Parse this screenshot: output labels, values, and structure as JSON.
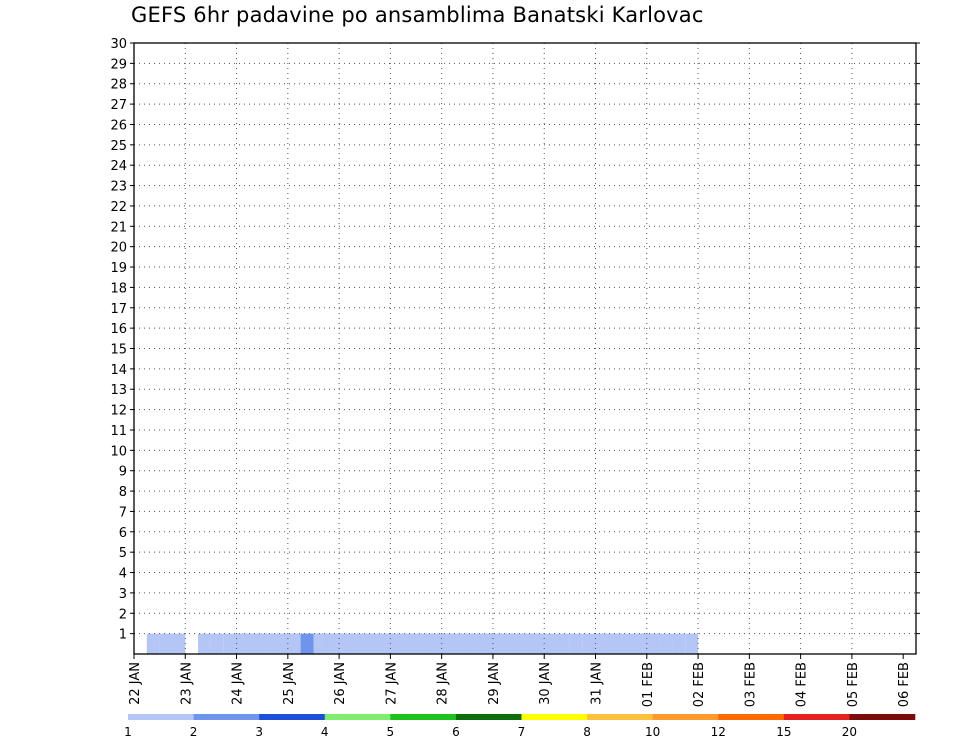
{
  "chart_data": {
    "type": "heatmap",
    "title": "GEFS 6hr padavine po ansamblima Banatski Karlovac",
    "y_ticks": [
      1,
      2,
      3,
      4,
      5,
      6,
      7,
      8,
      9,
      10,
      11,
      12,
      13,
      14,
      15,
      16,
      17,
      18,
      19,
      20,
      21,
      22,
      23,
      24,
      25,
      26,
      27,
      28,
      29,
      30
    ],
    "x_ticks": [
      "22 JAN",
      "23 JAN",
      "24 JAN",
      "25 JAN",
      "26 JAN",
      "27 JAN",
      "28 JAN",
      "29 JAN",
      "30 JAN",
      "31 JAN",
      "01 FEB",
      "02 FEB",
      "03 FEB",
      "04 FEB",
      "05 FEB",
      "06 FEB"
    ],
    "x_range": [
      0,
      61
    ],
    "y_range": [
      0,
      30
    ],
    "grid": true,
    "legend_position": "bottom",
    "legend": {
      "bounds": [
        1,
        2,
        3,
        4,
        5,
        6,
        7,
        8,
        10,
        12,
        15,
        20
      ],
      "colors": [
        "#b3c6f5",
        "#6f94ec",
        "#1e4fd8",
        "#7fec6e",
        "#1ec21e",
        "#0e6e0e",
        "#ffff00",
        "#ffc03c",
        "#ff9a2c",
        "#ff6a00",
        "#e62020",
        "#7a0c0c"
      ]
    },
    "cells": [
      [
        1,
        1,
        1
      ],
      [
        9,
        1,
        1
      ],
      [
        10,
        1,
        1
      ],
      [
        11,
        1,
        1
      ],
      [
        8,
        1,
        3
      ],
      [
        9,
        1,
        1
      ],
      [
        2,
        1,
        1
      ],
      [
        3,
        1,
        1
      ],
      [
        8,
        1,
        4
      ],
      [
        9,
        1,
        2
      ],
      [
        5,
        1,
        1
      ],
      [
        6,
        1,
        1
      ],
      [
        20,
        1,
        1
      ],
      [
        7,
        1,
        1
      ],
      [
        8,
        1,
        1
      ],
      [
        20,
        1,
        1
      ],
      [
        29,
        1,
        1
      ],
      [
        30,
        1,
        1
      ],
      [
        31,
        1,
        1
      ],
      [
        36,
        1,
        1
      ],
      [
        37,
        1,
        1
      ],
      [
        39,
        1,
        2
      ],
      [
        40,
        1,
        2
      ],
      [
        8,
        1,
        1
      ],
      [
        9,
        1,
        1
      ],
      [
        10,
        1,
        1
      ],
      [
        11,
        1,
        1
      ],
      [
        9,
        1,
        1
      ],
      [
        11,
        1,
        1
      ],
      [
        10,
        1,
        1
      ],
      [
        11,
        1,
        1
      ],
      [
        12,
        1,
        1
      ],
      [
        29,
        1,
        1
      ],
      [
        30,
        1,
        1
      ],
      [
        31,
        1,
        1
      ],
      [
        36,
        1,
        1
      ],
      [
        37,
        1,
        1
      ],
      [
        40,
        1,
        1
      ],
      [
        41,
        1,
        1
      ],
      [
        42,
        1,
        1
      ],
      [
        43,
        1,
        1
      ],
      [
        11,
        1,
        1
      ],
      [
        12,
        1,
        1
      ],
      [
        12,
        1,
        1
      ],
      [
        13,
        1,
        1
      ],
      [
        14,
        1,
        1
      ],
      [
        15,
        1,
        1
      ],
      [
        16,
        1,
        1
      ],
      [
        13,
        1,
        2
      ],
      [
        14,
        1,
        2
      ],
      [
        19,
        1,
        1
      ],
      [
        20,
        1,
        1
      ],
      [
        21,
        1,
        1
      ],
      [
        22,
        1,
        1
      ],
      [
        23,
        1,
        1
      ],
      [
        24,
        1,
        1
      ],
      [
        25,
        1,
        1
      ],
      [
        26,
        1,
        1
      ],
      [
        27,
        1,
        1
      ],
      [
        28,
        1,
        1
      ],
      [
        29,
        1,
        1
      ],
      [
        30,
        1,
        1
      ],
      [
        31,
        1,
        1
      ],
      [
        32,
        1,
        1
      ],
      [
        33,
        1,
        1
      ],
      [
        34,
        1,
        1
      ],
      [
        35,
        1,
        1
      ],
      [
        36,
        1,
        1
      ],
      [
        37,
        1,
        1
      ],
      [
        38,
        1,
        1
      ],
      [
        39,
        1,
        1
      ],
      [
        14,
        1,
        1
      ],
      [
        15,
        1,
        1
      ],
      [
        16,
        1,
        1
      ],
      [
        15,
        1,
        1
      ],
      [
        16,
        1,
        1
      ],
      [
        17,
        1,
        1
      ],
      [
        16,
        1,
        1
      ],
      [
        17,
        1,
        1
      ],
      [
        18,
        1,
        1
      ],
      [
        19,
        1,
        1
      ],
      [
        20,
        1,
        1
      ],
      [
        21,
        1,
        1
      ],
      [
        17,
        1,
        1
      ],
      [
        18,
        1,
        1
      ],
      [
        19,
        1,
        1
      ],
      [
        20,
        1,
        1
      ],
      [
        21,
        1,
        1
      ],
      [
        18,
        1,
        1
      ],
      [
        19,
        1,
        1
      ],
      [
        20,
        1,
        1
      ],
      [
        21,
        1,
        1
      ],
      [
        22,
        1,
        1
      ],
      [
        23,
        1,
        1
      ],
      [
        24,
        1,
        1
      ],
      [
        25,
        1,
        1
      ],
      [
        26,
        1,
        1
      ],
      [
        27,
        1,
        1
      ],
      [
        19,
        1,
        1
      ],
      [
        20,
        1,
        1
      ],
      [
        21,
        1,
        1
      ],
      [
        22,
        1,
        1
      ],
      [
        23,
        1,
        1
      ],
      [
        24,
        1,
        1
      ],
      [
        25,
        1,
        1
      ],
      [
        20,
        1,
        1
      ],
      [
        21,
        1,
        1
      ],
      [
        22,
        1,
        1
      ],
      [
        23,
        1,
        1
      ],
      [
        24,
        1,
        1
      ],
      [
        25,
        1,
        1
      ],
      [
        26,
        1,
        1
      ],
      [
        27,
        1,
        1
      ],
      [
        28,
        1,
        1
      ],
      [
        21,
        1,
        1
      ],
      [
        22,
        1,
        1
      ],
      [
        23,
        1,
        1
      ],
      [
        24,
        1,
        1
      ],
      [
        25,
        1,
        1
      ],
      [
        26,
        1,
        1
      ],
      [
        27,
        1,
        1
      ],
      [
        28,
        1,
        1
      ],
      [
        29,
        1,
        1
      ],
      [
        30,
        1,
        1
      ]
    ]
  }
}
